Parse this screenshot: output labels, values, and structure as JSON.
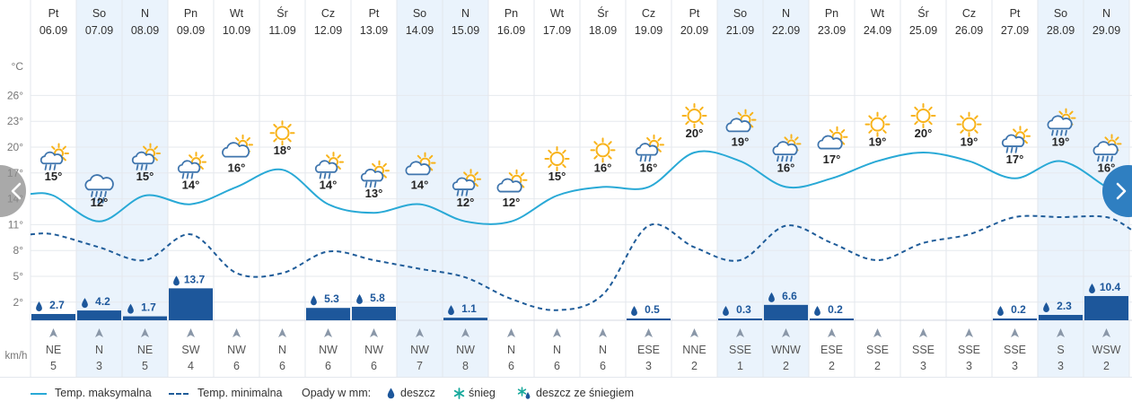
{
  "chart_data": {
    "type": "line",
    "ylabel": "°C",
    "wind_unit": "km/h",
    "y_ticks": [
      2,
      5,
      8,
      11,
      14,
      17,
      20,
      23,
      26
    ],
    "ylim": [
      0,
      29
    ],
    "grid": true,
    "days": [
      {
        "dow": "Pt",
        "date": "06.09",
        "icon": "partly-cloudy-showers-icon",
        "max": 15,
        "min": 10.5,
        "rain": 2.7,
        "rain_label": "2.7",
        "wind_dir": "NE",
        "wind_speed": "5",
        "weekend": false
      },
      {
        "dow": "So",
        "date": "07.09",
        "icon": "heavy-rain-cloud-icon",
        "max": 12,
        "min": 9,
        "rain": 4.2,
        "rain_label": "4.2",
        "wind_dir": "N",
        "wind_speed": "3",
        "weekend": true
      },
      {
        "dow": "N",
        "date": "08.09",
        "icon": "partly-cloudy-showers-icon",
        "max": 15,
        "min": 7.5,
        "rain": 1.7,
        "rain_label": "1.7",
        "wind_dir": "NE",
        "wind_speed": "5",
        "weekend": true
      },
      {
        "dow": "Pn",
        "date": "09.09",
        "icon": "partly-cloudy-showers-icon",
        "max": 14,
        "min": 10.5,
        "rain": 13.7,
        "rain_label": "13.7",
        "wind_dir": "SW",
        "wind_speed": "4",
        "weekend": false
      },
      {
        "dow": "Wt",
        "date": "10.09",
        "icon": "cloudy-icon",
        "max": 16,
        "min": 6,
        "rain": 0,
        "rain_label": "",
        "wind_dir": "NW",
        "wind_speed": "6",
        "weekend": false
      },
      {
        "dow": "Śr",
        "date": "11.09",
        "icon": "sunny-icon",
        "max": 18,
        "min": 6,
        "rain": 0,
        "rain_label": "",
        "wind_dir": "N",
        "wind_speed": "6",
        "weekend": false
      },
      {
        "dow": "Cz",
        "date": "12.09",
        "icon": "partly-cloudy-showers-icon",
        "max": 14,
        "min": 8.5,
        "rain": 5.3,
        "rain_label": "5.3",
        "wind_dir": "NW",
        "wind_speed": "6",
        "weekend": false
      },
      {
        "dow": "Pt",
        "date": "13.09",
        "icon": "partly-cloudy-showers-icon",
        "max": 13,
        "min": 7.5,
        "rain": 5.8,
        "rain_label": "5.8",
        "wind_dir": "NW",
        "wind_speed": "6",
        "weekend": false
      },
      {
        "dow": "So",
        "date": "14.09",
        "icon": "partly-cloudy-icon",
        "max": 14,
        "min": 6.5,
        "rain": 0,
        "rain_label": "",
        "wind_dir": "NW",
        "wind_speed": "7",
        "weekend": true
      },
      {
        "dow": "N",
        "date": "15.09",
        "icon": "partly-cloudy-showers-icon",
        "max": 12,
        "min": 5.5,
        "rain": 1.1,
        "rain_label": "1.1",
        "wind_dir": "NW",
        "wind_speed": "8",
        "weekend": true
      },
      {
        "dow": "Pn",
        "date": "16.09",
        "icon": "partly-cloudy-icon",
        "max": 12,
        "min": 3,
        "rain": 0,
        "rain_label": "",
        "wind_dir": "N",
        "wind_speed": "6",
        "weekend": false
      },
      {
        "dow": "Wt",
        "date": "17.09",
        "icon": "sunny-icon",
        "max": 15,
        "min": 1.7,
        "rain": 0,
        "rain_label": "",
        "wind_dir": "N",
        "wind_speed": "6",
        "weekend": false
      },
      {
        "dow": "Śr",
        "date": "18.09",
        "icon": "sunny-icon",
        "max": 16,
        "min": 3.5,
        "rain": 0,
        "rain_label": "",
        "wind_dir": "N",
        "wind_speed": "6",
        "weekend": false
      },
      {
        "dow": "Cz",
        "date": "19.09",
        "icon": "partly-cloudy-showers-icon",
        "max": 16,
        "min": 11.5,
        "rain": 0.5,
        "rain_label": "0.5",
        "wind_dir": "ESE",
        "wind_speed": "3",
        "weekend": false
      },
      {
        "dow": "Pt",
        "date": "20.09",
        "icon": "sunny-icon",
        "max": 20,
        "min": 9,
        "rain": 0,
        "rain_label": "",
        "wind_dir": "NNE",
        "wind_speed": "2",
        "weekend": false
      },
      {
        "dow": "So",
        "date": "21.09",
        "icon": "partly-cloudy-icon",
        "max": 19,
        "min": 7.5,
        "rain": 0.3,
        "rain_label": "0.3",
        "wind_dir": "SSE",
        "wind_speed": "1",
        "weekend": true
      },
      {
        "dow": "N",
        "date": "22.09",
        "icon": "rain-cloud-icon",
        "max": 16,
        "min": 11.5,
        "rain": 6.6,
        "rain_label": "6.6",
        "wind_dir": "WNW",
        "wind_speed": "2",
        "weekend": true
      },
      {
        "dow": "Pn",
        "date": "23.09",
        "icon": "partly-cloudy-icon",
        "max": 17,
        "min": 9.5,
        "rain": 0.2,
        "rain_label": "0.2",
        "wind_dir": "ESE",
        "wind_speed": "2",
        "weekend": false
      },
      {
        "dow": "Wt",
        "date": "24.09",
        "icon": "sunny-icon",
        "max": 19,
        "min": 7.5,
        "rain": 0,
        "rain_label": "",
        "wind_dir": "SSE",
        "wind_speed": "2",
        "weekend": false
      },
      {
        "dow": "Śr",
        "date": "25.09",
        "icon": "sunny-icon",
        "max": 20,
        "min": 9.5,
        "rain": 0,
        "rain_label": "",
        "wind_dir": "SSE",
        "wind_speed": "3",
        "weekend": false
      },
      {
        "dow": "Cz",
        "date": "26.09",
        "icon": "sunny-icon",
        "max": 19,
        "min": 10.5,
        "rain": 0,
        "rain_label": "",
        "wind_dir": "SSE",
        "wind_speed": "3",
        "weekend": false
      },
      {
        "dow": "Pt",
        "date": "27.09",
        "icon": "partly-cloudy-showers-icon",
        "max": 17,
        "min": 12.5,
        "rain": 0.2,
        "rain_label": "0.2",
        "wind_dir": "SSE",
        "wind_speed": "3",
        "weekend": false
      },
      {
        "dow": "So",
        "date": "28.09",
        "icon": "rain-cloud-icon",
        "max": 19,
        "min": 12.5,
        "rain": 2.3,
        "rain_label": "2.3",
        "wind_dir": "S",
        "wind_speed": "3",
        "weekend": true
      },
      {
        "dow": "N",
        "date": "29.09",
        "icon": "rain-cloud-icon",
        "max": 16,
        "min": 12.5,
        "rain": 10.4,
        "rain_label": "10.4",
        "wind_dir": "WSW",
        "wind_speed": "2",
        "weekend": true
      }
    ],
    "edge": {
      "max_start": 15.2,
      "max_end": 14.5,
      "min_start": 10.5,
      "min_end": 11
    }
  },
  "legend": {
    "max_label": "Temp. maksymalna",
    "min_label": "Temp. minimalna",
    "precip_label": "Opady w mm:",
    "rain_label": "deszcz",
    "snow_label": "śnieg",
    "sleet_label": "deszcz ze śniegiem"
  },
  "colors": {
    "max_line": "#29a9d6",
    "min_line": "#1f5c99",
    "rain_bar": "#1d579b",
    "weekend_bg": "#eaf3fc",
    "sun": "#f8b31a",
    "cloud": "#3f75ad",
    "snow": "#18a99c"
  }
}
